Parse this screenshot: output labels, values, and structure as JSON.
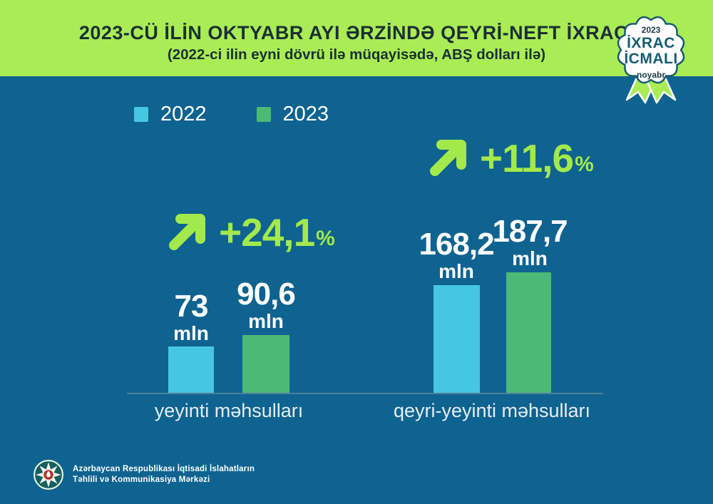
{
  "header": {
    "title": "2023-CÜ İLİN OKTYABR AYI ƏRZİNDƏ QEYRİ-NEFT İXRACI",
    "subtitle": "(2022-ci ilin eyni dövrü ilə müqayisədə, ABŞ dolları ilə)"
  },
  "badge": {
    "year": "2023",
    "title_line1": "İXRAC",
    "title_line2": "İCMALI",
    "month": "noyabr"
  },
  "legend": {
    "items": [
      {
        "label": "2022",
        "color": "#47c6e2"
      },
      {
        "label": "2023",
        "color": "#4db976"
      }
    ]
  },
  "chart_data": {
    "type": "bar",
    "title": "2023-CÜ İLİN OKTYABR AYI ƏRZİNDƏ QEYRİ-NEFT İXRACI",
    "subtitle": "(2022-ci ilin eyni dövrü ilə müqayisədə, ABŞ dolları ilə)",
    "unit": "mln",
    "categories": [
      "yeyinti məhsulları",
      "qeyri-yeyinti məhsulları"
    ],
    "series": [
      {
        "name": "2022",
        "color": "#47c6e2",
        "values": [
          73,
          168.2
        ]
      },
      {
        "name": "2023",
        "color": "#4db976",
        "values": [
          90.6,
          187.7
        ]
      }
    ],
    "growth_percent": [
      24.1,
      11.6
    ],
    "ylim": [
      0,
      200
    ],
    "grid": false,
    "legend_position": "top-left"
  },
  "groups": [
    {
      "category": "yeyinti məhsulları",
      "growth_value": "+24,1",
      "percent_sign": "%",
      "bars": [
        {
          "series": "2022",
          "value_label": "73",
          "unit": "mln"
        },
        {
          "series": "2023",
          "value_label": "90,6",
          "unit": "mln"
        }
      ]
    },
    {
      "category": "qeyri-yeyinti məhsulları",
      "growth_value": "+11,6",
      "percent_sign": "%",
      "bars": [
        {
          "series": "2022",
          "value_label": "168,2",
          "unit": "mln"
        },
        {
          "series": "2023",
          "value_label": "187,7",
          "unit": "mln"
        }
      ]
    }
  ],
  "footer": {
    "org_line1": "Azərbaycan Respublikası İqtisadi İslahatların",
    "org_line2": "Təhlili və Kommunikasiya Mərkəzi"
  },
  "colors": {
    "background": "#0f6390",
    "header_band": "#a9ec55",
    "accent_green": "#a3e94b",
    "bar_2022": "#47c6e2",
    "bar_2023": "#4db976",
    "axis_line": "#4c7fa0",
    "title_text": "#1b2f35",
    "badge_teal": "#175c73"
  }
}
